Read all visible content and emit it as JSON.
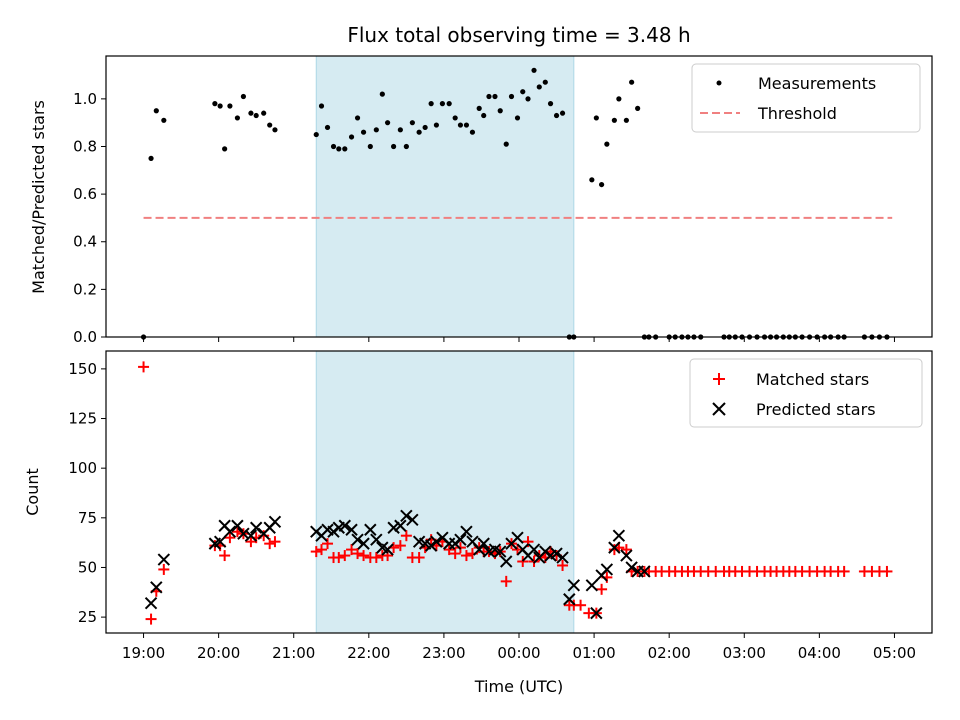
{
  "chart_data": [
    {
      "type": "scatter",
      "title": "Flux total observing time = 3.48 h",
      "xlabel": "",
      "ylabel": "Matched/Predicted stars",
      "xlim": [
        -0.5,
        10.5
      ],
      "ylim": [
        0,
        1.18
      ],
      "yticks": [
        0.0,
        0.2,
        0.4,
        0.6,
        0.8,
        1.0
      ],
      "ytick_labels": [
        "0.0",
        "0.2",
        "0.4",
        "0.6",
        "0.8",
        "1.0"
      ],
      "shaded_region": [
        2.3,
        5.73
      ],
      "legend": {
        "location": "top-right",
        "entries": [
          "Measurements",
          "Threshold"
        ]
      },
      "threshold": {
        "name": "Threshold",
        "x": [
          0.0,
          9.97
        ],
        "y": 0.5,
        "color": "#f08080"
      },
      "measurements": {
        "name": "Measurements",
        "color": "#000000",
        "x": [
          0.0,
          0.1,
          0.17,
          0.27,
          0.95,
          1.02,
          1.08,
          1.15,
          1.25,
          1.33,
          1.43,
          1.5,
          1.6,
          1.68,
          1.75,
          2.3,
          2.37,
          2.45,
          2.53,
          2.6,
          2.68,
          2.77,
          2.85,
          2.93,
          3.02,
          3.1,
          3.18,
          3.25,
          3.33,
          3.42,
          3.5,
          3.58,
          3.67,
          3.75,
          3.83,
          3.9,
          3.98,
          4.07,
          4.15,
          4.22,
          4.3,
          4.38,
          4.47,
          4.53,
          4.6,
          4.68,
          4.75,
          4.83,
          4.9,
          4.98,
          5.05,
          5.12,
          5.2,
          5.27,
          5.35,
          5.42,
          5.5,
          5.58,
          5.67,
          5.73,
          5.97,
          6.03,
          6.1,
          6.17,
          6.27,
          6.33,
          6.43,
          6.5,
          6.58,
          6.67,
          6.73,
          6.82,
          7.0,
          7.08,
          7.17,
          7.25,
          7.33,
          7.42,
          7.73,
          7.8,
          7.88,
          7.97,
          8.07,
          8.17,
          8.27,
          8.35,
          8.43,
          8.52,
          8.6,
          8.68,
          8.77,
          8.87,
          8.97,
          9.07,
          9.15,
          9.25,
          9.33,
          9.6,
          9.7,
          9.8,
          9.9
        ],
        "y": [
          0.0,
          0.75,
          0.95,
          0.91,
          0.98,
          0.97,
          0.79,
          0.97,
          0.92,
          1.01,
          0.94,
          0.93,
          0.94,
          0.89,
          0.87,
          0.85,
          0.97,
          0.88,
          0.8,
          0.79,
          0.79,
          0.84,
          0.92,
          0.86,
          0.8,
          0.87,
          1.02,
          0.9,
          0.8,
          0.87,
          0.8,
          0.9,
          0.86,
          0.88,
          0.98,
          0.89,
          0.98,
          0.98,
          0.92,
          0.89,
          0.89,
          0.86,
          0.96,
          0.93,
          1.01,
          1.01,
          0.95,
          0.81,
          1.01,
          0.92,
          1.03,
          1.0,
          1.12,
          1.05,
          1.07,
          0.98,
          0.93,
          0.94,
          0.0,
          0.0,
          0.66,
          0.92,
          0.64,
          0.81,
          0.91,
          1.0,
          0.91,
          1.07,
          0.96,
          0.0,
          0.0,
          0.0,
          0.0,
          0.0,
          0.0,
          0.0,
          0.0,
          0.0,
          0.0,
          0.0,
          0.0,
          0.0,
          0.0,
          0.0,
          0.0,
          0.0,
          0.0,
          0.0,
          0.0,
          0.0,
          0.0,
          0.0,
          0.0,
          0.0,
          0.0,
          0.0,
          0.0,
          0.0,
          0.0,
          0.0,
          0.0
        ]
      }
    },
    {
      "type": "scatter",
      "title": "",
      "xlabel": "Time (UTC)",
      "ylabel": "Count",
      "xlim": [
        -0.5,
        10.5
      ],
      "ylim": [
        17,
        159
      ],
      "yticks": [
        25,
        50,
        75,
        100,
        125,
        150
      ],
      "ytick_labels": [
        "25",
        "50",
        "75",
        "100",
        "125",
        "150"
      ],
      "xticks": [
        0,
        1,
        2,
        3,
        4,
        5,
        6,
        7,
        8,
        9,
        10
      ],
      "xtick_labels": [
        "19:00",
        "20:00",
        "21:00",
        "22:00",
        "23:00",
        "00:00",
        "01:00",
        "02:00",
        "03:00",
        "04:00",
        "05:00"
      ],
      "shaded_region": [
        2.3,
        5.73
      ],
      "legend": {
        "location": "top-right",
        "entries": [
          "Matched stars",
          "Predicted stars"
        ]
      },
      "series": [
        {
          "name": "Matched stars",
          "marker": "plus",
          "color": "#ff0000",
          "x": [
            0.0,
            0.1,
            0.17,
            0.27,
            0.95,
            1.02,
            1.08,
            1.15,
            1.25,
            1.33,
            1.43,
            1.5,
            1.6,
            1.68,
            1.75,
            2.3,
            2.37,
            2.45,
            2.53,
            2.6,
            2.68,
            2.77,
            2.85,
            2.93,
            3.02,
            3.1,
            3.18,
            3.25,
            3.33,
            3.42,
            3.5,
            3.58,
            3.67,
            3.75,
            3.83,
            3.9,
            3.98,
            4.07,
            4.15,
            4.22,
            4.3,
            4.38,
            4.47,
            4.53,
            4.6,
            4.68,
            4.75,
            4.83,
            4.9,
            4.98,
            5.05,
            5.12,
            5.2,
            5.27,
            5.35,
            5.42,
            5.5,
            5.58,
            5.67,
            5.73,
            5.82,
            5.93,
            6.03,
            6.1,
            6.17,
            6.27,
            6.33,
            6.43,
            6.5,
            6.58,
            6.67,
            6.73,
            6.82,
            6.9,
            7.0,
            7.08,
            7.17,
            7.25,
            7.33,
            7.42,
            7.52,
            7.62,
            7.73,
            7.8,
            7.88,
            7.97,
            8.07,
            8.17,
            8.27,
            8.35,
            8.43,
            8.52,
            8.6,
            8.68,
            8.77,
            8.87,
            8.97,
            9.07,
            9.15,
            9.25,
            9.33,
            9.6,
            9.7,
            9.8,
            9.9
          ],
          "y": [
            151,
            24,
            38,
            49,
            61,
            61,
            56,
            65,
            68,
            67,
            63,
            65,
            66,
            62,
            63,
            58,
            59,
            62,
            55,
            55,
            56,
            59,
            57,
            56,
            55,
            55,
            56,
            56,
            60,
            61,
            66,
            55,
            55,
            60,
            64,
            61,
            63,
            59,
            57,
            60,
            56,
            57,
            60,
            58,
            58,
            57,
            58,
            43,
            62,
            59,
            53,
            63,
            53,
            56,
            55,
            58,
            56,
            51,
            31,
            31,
            31,
            27,
            27,
            39,
            45,
            59,
            60,
            59,
            48,
            48,
            48,
            48,
            48,
            48,
            48,
            48,
            48,
            48,
            48,
            48,
            48,
            48,
            48,
            48,
            48,
            48,
            48,
            48,
            48,
            48,
            48,
            48,
            48,
            48,
            48,
            48,
            48,
            48,
            48,
            48,
            48,
            48,
            48,
            48,
            48
          ]
        },
        {
          "name": "Predicted stars",
          "marker": "x",
          "color": "#000000",
          "x": [
            0.1,
            0.17,
            0.27,
            0.95,
            1.02,
            1.08,
            1.15,
            1.25,
            1.33,
            1.43,
            1.5,
            1.6,
            1.68,
            1.75,
            2.3,
            2.37,
            2.45,
            2.53,
            2.6,
            2.68,
            2.77,
            2.85,
            2.93,
            3.02,
            3.1,
            3.18,
            3.25,
            3.33,
            3.42,
            3.5,
            3.58,
            3.67,
            3.75,
            3.83,
            3.9,
            3.98,
            4.07,
            4.15,
            4.22,
            4.3,
            4.38,
            4.47,
            4.53,
            4.6,
            4.68,
            4.75,
            4.83,
            4.9,
            4.98,
            5.05,
            5.12,
            5.2,
            5.27,
            5.35,
            5.42,
            5.5,
            5.58,
            5.67,
            5.73,
            5.97,
            6.03,
            6.1,
            6.17,
            6.27,
            6.33,
            6.43,
            6.5,
            6.58,
            6.67
          ],
          "y": [
            32,
            40,
            54,
            62,
            63,
            71,
            68,
            71,
            67,
            66,
            70,
            67,
            70,
            73,
            68,
            66,
            69,
            68,
            70,
            71,
            69,
            64,
            62,
            69,
            64,
            60,
            59,
            70,
            71,
            76,
            74,
            63,
            62,
            61,
            63,
            65,
            62,
            62,
            64,
            68,
            63,
            59,
            62,
            58,
            59,
            58,
            53,
            62,
            65,
            59,
            56,
            59,
            55,
            58,
            56,
            57,
            55,
            34,
            41,
            41,
            27,
            46,
            49,
            60,
            66,
            56,
            50,
            48,
            48
          ]
        }
      ]
    }
  ]
}
